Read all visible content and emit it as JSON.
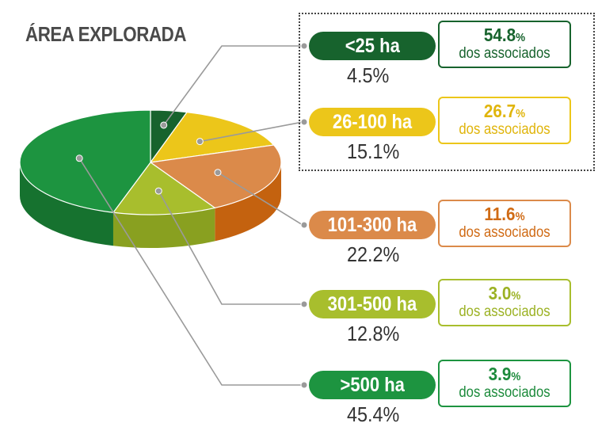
{
  "title": "ÁREA EXPLORADA",
  "chart_data": {
    "type": "pie",
    "title": "ÁREA EXPLORADA",
    "series_label": "Área explorada",
    "secondary_label": "dos associados",
    "slices": [
      {
        "category": "<25 ha",
        "value": 4.5,
        "value_label": "4.5%",
        "associados": "54.8",
        "color": "#17632d",
        "side": "#0f4a20",
        "text_color": "#17632d"
      },
      {
        "category": "26-100 ha",
        "value": 15.1,
        "value_label": "15.1%",
        "associados": "26.7",
        "color": "#ecc61a",
        "side": "#c9a20f",
        "text_color": "#e0b50c"
      },
      {
        "category": "101-300 ha",
        "value": 22.2,
        "value_label": "22.2%",
        "associados": "11.6",
        "color": "#db8a4a",
        "side": "#c4620f",
        "text_color": "#d06b15"
      },
      {
        "category": "301-500 ha",
        "value": 12.8,
        "value_label": "12.8%",
        "associados": "3.0",
        "color": "#a8be2d",
        "side": "#89a020",
        "text_color": "#9cb224"
      },
      {
        "category": ">500 ha",
        "value": 45.4,
        "value_label": "45.4%",
        "associados": "3.9",
        "color": "#1d9440",
        "side": "#16722f",
        "text_color": "#1d8b3c"
      }
    ]
  }
}
